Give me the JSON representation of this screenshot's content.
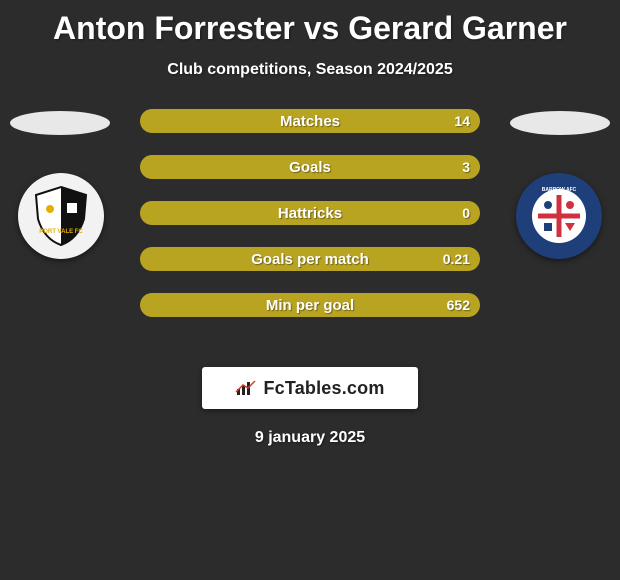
{
  "title": "Anton Forrester vs Gerard Garner",
  "subtitle": "Club competitions, Season 2024/2025",
  "date": "9 january 2025",
  "logo_text": "FcTables.com",
  "background_color": "#2c2c2c",
  "track_color": "#928319",
  "fill_color": "#b9a422",
  "oval_color": "#e8e8e8",
  "label_fontsize": 15,
  "value_fontsize": 14,
  "title_fontsize": 32,
  "subtitle_fontsize": 16,
  "date_fontsize": 16,
  "stat_bar_height": 24,
  "stat_gap": 22,
  "players": {
    "left": {
      "name": "Anton Forrester",
      "club": {
        "name": "Port Vale",
        "bg": "#f2f2f2",
        "accent": "#111111"
      }
    },
    "right": {
      "name": "Gerard Garner",
      "club": {
        "name": "Barrow AFC",
        "bg": "#1f3f7a",
        "accent": "#d03040"
      }
    }
  },
  "stats": [
    {
      "label": "Matches",
      "value_text": "14",
      "fill_pct": 100
    },
    {
      "label": "Goals",
      "value_text": "3",
      "fill_pct": 100
    },
    {
      "label": "Hattricks",
      "value_text": "0",
      "fill_pct": 100
    },
    {
      "label": "Goals per match",
      "value_text": "0.21",
      "fill_pct": 100
    },
    {
      "label": "Min per goal",
      "value_text": "652",
      "fill_pct": 100
    }
  ]
}
